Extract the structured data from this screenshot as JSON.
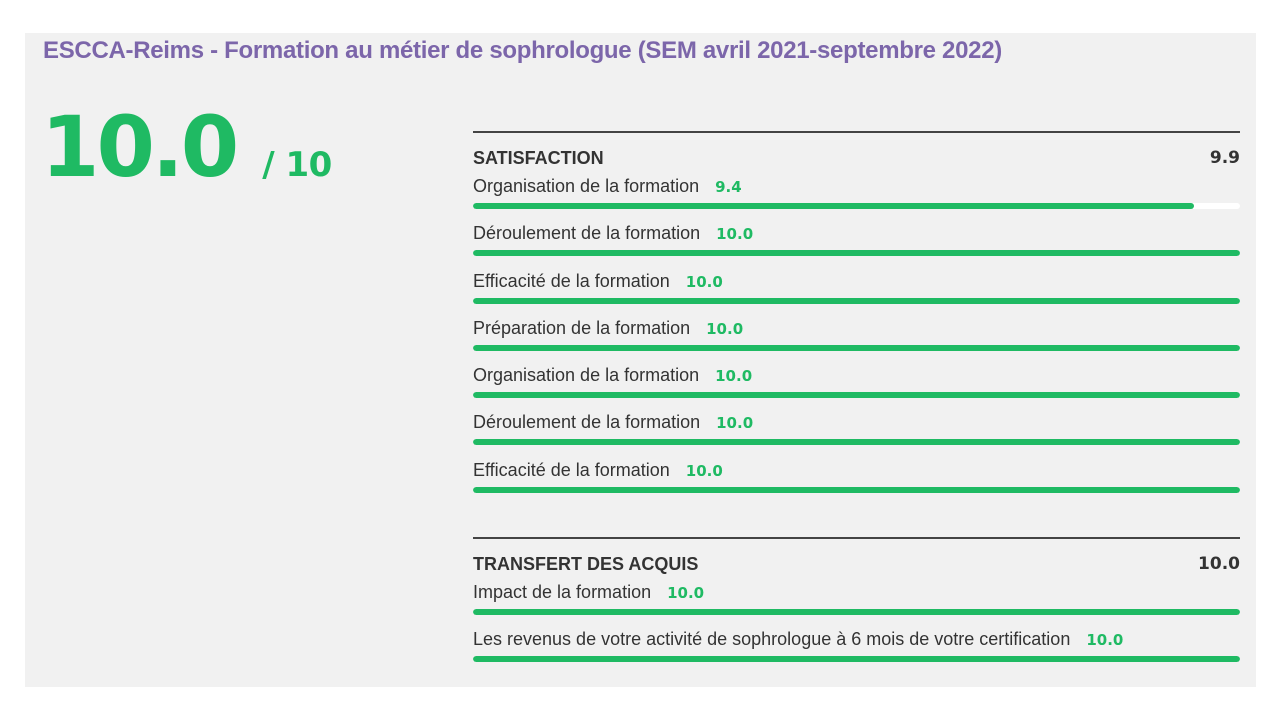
{
  "title": "ESCCA-Reims - Formation au métier de sophrologue (SEM avril 2021-septembre 2022)",
  "overall": {
    "score": "10.0",
    "max": "/ 10"
  },
  "colors": {
    "title": "#7c66aa",
    "accent_green": "#1fba63",
    "text_dark": "#333333",
    "panel_bg": "#f1f1f1",
    "bar_track": "#ffffff"
  },
  "sections": [
    {
      "title": "SATISFACTION",
      "score": "9.9",
      "items": [
        {
          "label": "Organisation de la formation",
          "score": "9.4",
          "fill_fraction": 0.94
        },
        {
          "label": "Déroulement de la formation",
          "score": "10.0",
          "fill_fraction": 1.0
        },
        {
          "label": "Efficacité de la formation",
          "score": "10.0",
          "fill_fraction": 1.0
        },
        {
          "label": "Préparation de la formation",
          "score": "10.0",
          "fill_fraction": 1.0
        },
        {
          "label": "Organisation de la formation",
          "score": "10.0",
          "fill_fraction": 1.0
        },
        {
          "label": "Déroulement de la formation",
          "score": "10.0",
          "fill_fraction": 1.0
        },
        {
          "label": "Efficacité de la formation",
          "score": "10.0",
          "fill_fraction": 1.0
        }
      ]
    },
    {
      "title": "TRANSFERT DES ACQUIS",
      "score": "10.0",
      "items": [
        {
          "label": "Impact de la formation",
          "score": "10.0",
          "fill_fraction": 1.0
        },
        {
          "label": "Les revenus de votre activité de sophrologue à 6 mois de votre certification",
          "score": "10.0",
          "fill_fraction": 1.0
        }
      ]
    }
  ]
}
